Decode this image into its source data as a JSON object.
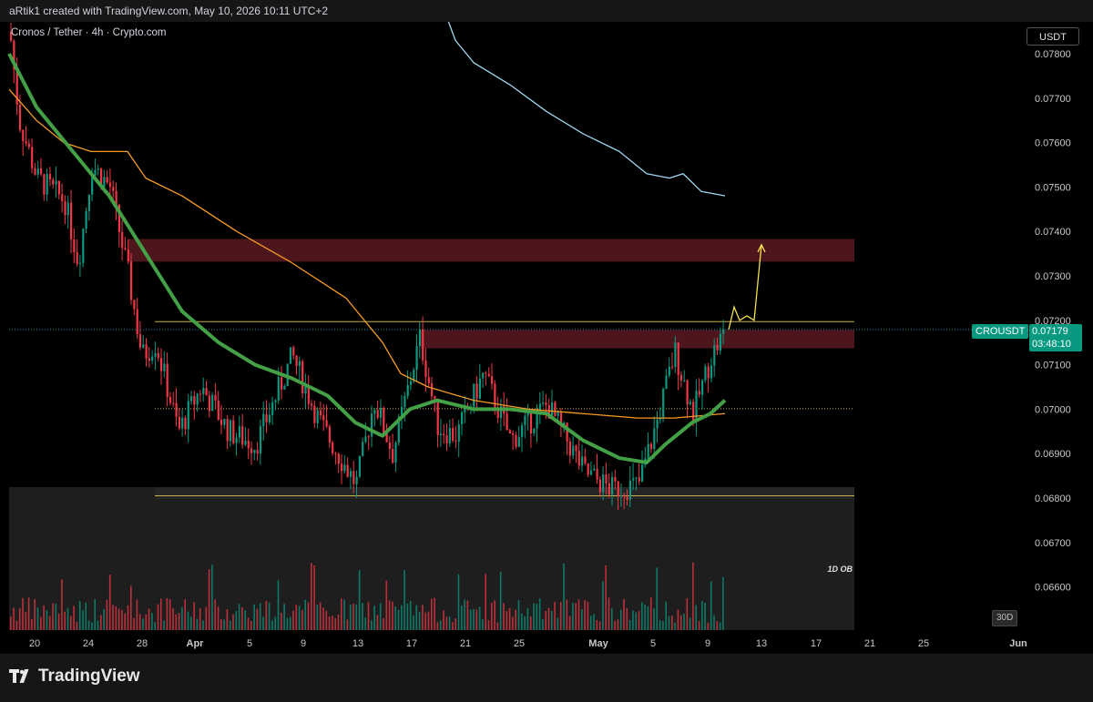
{
  "header": {
    "attribution": "aRtik1 created with TradingView.com, May 10, 2026 10:11 UTC+2"
  },
  "symbol": {
    "description": "Cronos / Tether · 4h · Crypto.com"
  },
  "currency_button": "USDT",
  "price_label": {
    "ticker": "CROUSDT",
    "price": "0.07179",
    "countdown": "03:48:10"
  },
  "range_button": "30D",
  "footer": {
    "brand": "TradingView"
  },
  "colors": {
    "up": "#089981",
    "down": "#f23645",
    "ma_green": "#43a047",
    "ma_orange": "#f59a23",
    "ma_blue": "#a0d8f0",
    "zone": "#5a1a22",
    "level": "#c8b046",
    "projection": "#f2e14c"
  },
  "chart_data": {
    "type": "candlestick",
    "y_axis": {
      "ylim": [
        0.0655,
        0.0784
      ],
      "ticks": [
        "0.07800",
        "0.07700",
        "0.07600",
        "0.07500",
        "0.07400",
        "0.07300",
        "0.07200",
        "0.07100",
        "0.07000",
        "0.06900",
        "0.06800",
        "0.06700",
        "0.06600"
      ]
    },
    "x_axis": {
      "ticks": [
        "20",
        "24",
        "28",
        "Apr",
        "5",
        "9",
        "13",
        "17",
        "21",
        "25",
        "May",
        "5",
        "9",
        "13",
        "17",
        "21",
        "25",
        "Jun"
      ]
    },
    "zones": [
      {
        "from": 0.07332,
        "to": 0.07383
      },
      {
        "from": 0.07137,
        "to": 0.07178
      }
    ],
    "levels": [
      0.07197,
      0.06805
    ],
    "dotted_levels": [
      0.07001,
      0.07179
    ],
    "annotation": "1D OB",
    "projection": [
      [
        0.07179,
        0.0723,
        0.072,
        0.0721,
        0.072,
        0.0737
      ]
    ]
  }
}
